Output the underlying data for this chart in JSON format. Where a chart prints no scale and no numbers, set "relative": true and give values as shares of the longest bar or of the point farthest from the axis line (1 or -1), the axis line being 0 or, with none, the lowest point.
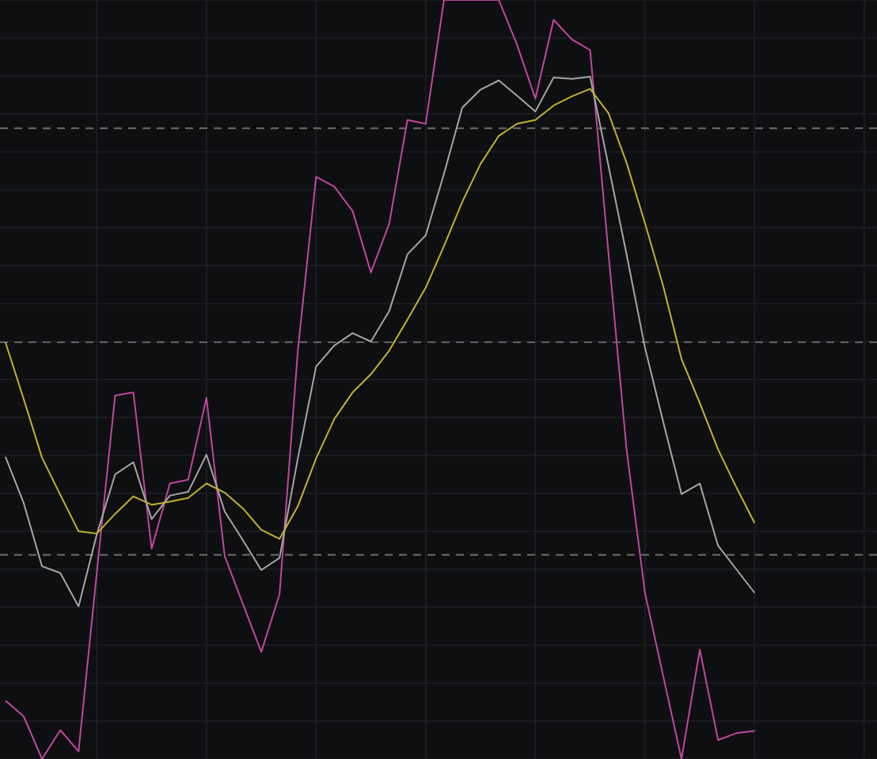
{
  "chart_data": {
    "type": "line",
    "relative": true,
    "categories": [
      null,
      null,
      null,
      null,
      null,
      null,
      null,
      null,
      null,
      null,
      null,
      null,
      null,
      null,
      null,
      null,
      null,
      null,
      null,
      null,
      null,
      null,
      null,
      null,
      null,
      null,
      null,
      null,
      null,
      null,
      null,
      null,
      null,
      null,
      null,
      null,
      null,
      null,
      null,
      null,
      null,
      null,
      null,
      null,
      null,
      null,
      null,
      null
    ],
    "series": [
      {
        "color": "#c2459f",
        "values": [
          0.077,
          0.056,
          0,
          0.038,
          0.01,
          0.246,
          0.479,
          0.483,
          0.277,
          0.363,
          0.368,
          0.476,
          0.267,
          0.204,
          0.141,
          0.217,
          0.538,
          0.767,
          0.754,
          0.722,
          0.641,
          0.705,
          0.842,
          0.837,
          1,
          1,
          1,
          1,
          0.941,
          0.87,
          0.974,
          0.948,
          0.934,
          0.667,
          0.406,
          0.219,
          0.109,
          0,
          0.144,
          0.025,
          0.034,
          0.037,
          null,
          null,
          null,
          null,
          null,
          null
        ]
      },
      {
        "color": "#a6a6a6",
        "values": [
          0.398,
          0.337,
          0.254,
          0.245,
          0.201,
          0.296,
          0.375,
          0.391,
          0.316,
          0.347,
          0.352,
          0.401,
          0.326,
          0.288,
          0.249,
          0.265,
          0.396,
          0.517,
          0.545,
          0.561,
          0.55,
          0.59,
          0.665,
          0.69,
          0.771,
          0.858,
          0.882,
          0.894,
          0.874,
          0.853,
          0.898,
          0.896,
          0.899,
          0.782,
          0.664,
          0.542,
          0.444,
          0.349,
          0.363,
          0.281,
          0.25,
          0.219,
          null,
          null,
          null,
          null,
          null,
          null
        ]
      },
      {
        "color": "#c4b22a",
        "values": [
          0.549,
          0.474,
          0.397,
          0.348,
          0.3,
          0.297,
          0.323,
          0.346,
          0.335,
          0.339,
          0.344,
          0.363,
          0.351,
          0.33,
          0.302,
          0.29,
          0.333,
          0.396,
          0.448,
          0.483,
          0.507,
          0.538,
          0.579,
          0.621,
          0.676,
          0.734,
          0.784,
          0.821,
          0.837,
          0.842,
          0.861,
          0.873,
          0.883,
          0.851,
          0.785,
          0.706,
          0.623,
          0.527,
          0.469,
          0.408,
          0.358,
          0.311,
          null,
          null,
          null,
          null,
          null,
          null
        ]
      }
    ],
    "ref_lines": [
      {
        "axis": "y",
        "value": 0.831,
        "color": "#6e6e6e",
        "line_style": "dashed"
      },
      {
        "axis": "y",
        "value": 0.549,
        "color": "#6e6e6e",
        "line_style": "dashed"
      },
      {
        "axis": "y",
        "value": 0.269,
        "color": "#6e6e6e",
        "line_style": "dashed"
      }
    ],
    "grid": true,
    "marker": "none",
    "line_style": "solid"
  }
}
